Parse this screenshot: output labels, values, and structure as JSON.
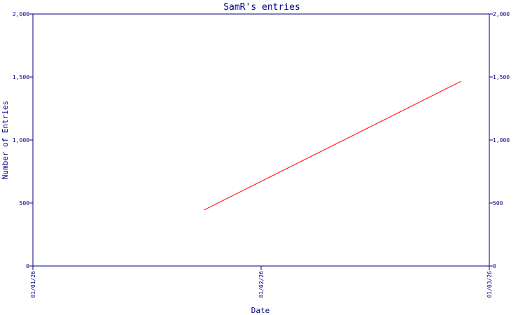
{
  "chart_data": {
    "type": "line",
    "title": "SamR's entries",
    "xlabel": "Date",
    "ylabel": "Number of Entries",
    "x_ticks": [
      "01/01/26",
      "01/02/26",
      "01/03/26"
    ],
    "xlim": [
      "01/01/26",
      "01/03/26"
    ],
    "ylim": [
      0,
      2000
    ],
    "y_ticks": [
      0,
      500,
      1000,
      1500,
      2000
    ],
    "y_tick_labels": [
      "0",
      "500",
      "1,000",
      "1,500",
      "2,000"
    ],
    "y_axis_right": true,
    "grid": false,
    "series": [
      {
        "x": [
          "01/01/26 18:00",
          "01/02/26 21:00"
        ],
        "y": [
          445,
          1465
        ],
        "color": "#ff0000"
      }
    ]
  },
  "colors": {
    "axis": "#000080",
    "line": "#ff0000",
    "background": "#ffffff"
  }
}
